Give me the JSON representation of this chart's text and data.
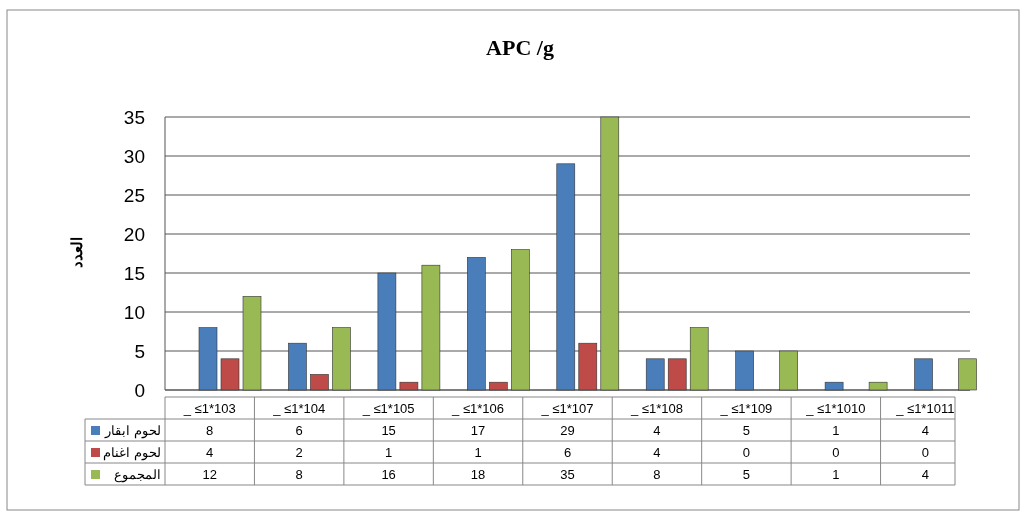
{
  "chart_data": {
    "type": "bar",
    "title": "APC  /g",
    "ylabel": "العدد",
    "categories": [
      "_ ≤1*103",
      "_ ≤1*104",
      "_ ≤1*105",
      "_ ≤1*106",
      "_ ≤1*107",
      "_ ≤1*108",
      "_ ≤1*109",
      "_ ≤1*1010",
      "_ ≤1*1011"
    ],
    "series": [
      {
        "name": "لحوم ابقار",
        "color": "#4a7ebb",
        "values": [
          8,
          6,
          15,
          17,
          29,
          4,
          5,
          1,
          4
        ]
      },
      {
        "name": "لحوم اغنام",
        "color": "#be4b48",
        "values": [
          4,
          2,
          1,
          1,
          6,
          4,
          0,
          0,
          0
        ]
      },
      {
        "name": "المجموع",
        "color": "#98b954",
        "values": [
          12,
          8,
          16,
          18,
          35,
          8,
          5,
          1,
          4
        ]
      }
    ],
    "ylim": [
      0,
      35
    ],
    "yticks": [
      0,
      5,
      10,
      15,
      20,
      25,
      30,
      35
    ],
    "grid": "y",
    "data_labels": true,
    "legend": "bottom"
  }
}
